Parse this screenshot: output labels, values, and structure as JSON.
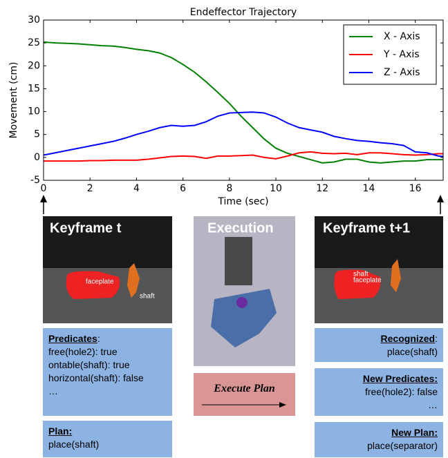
{
  "chart_data": {
    "type": "line",
    "title": "Endeffector Trajectory",
    "x_label": "Time (sec)",
    "y_label": "Movement (cm)",
    "x": [
      0,
      0.5,
      1,
      1.5,
      2,
      2.5,
      3,
      3.5,
      4,
      4.5,
      5,
      5.5,
      6,
      6.5,
      7,
      7.5,
      8,
      8.5,
      9,
      9.5,
      10,
      10.5,
      11,
      11.5,
      12,
      12.5,
      13,
      13.5,
      14,
      14.5,
      15,
      15.5,
      16,
      16.5,
      17,
      17.2
    ],
    "series": [
      {
        "name": "X - Axis",
        "color": "#008000",
        "values": [
          25.2,
          25.0,
          24.9,
          24.8,
          24.6,
          24.4,
          24.3,
          24.0,
          23.6,
          23.3,
          22.8,
          21.8,
          20.3,
          18.6,
          16.5,
          14.2,
          11.8,
          9.0,
          6.5,
          4.0,
          2.0,
          0.9,
          0.2,
          -0.5,
          -1.2,
          -1.0,
          -0.4,
          -0.4,
          -1.0,
          -1.2,
          -1.0,
          -0.8,
          -0.8,
          -0.5,
          -0.5,
          -0.5
        ]
      },
      {
        "name": "Y - Axis",
        "color": "#ff0000",
        "values": [
          -0.8,
          -0.8,
          -0.8,
          -0.8,
          -0.7,
          -0.7,
          -0.6,
          -0.6,
          -0.6,
          -0.4,
          -0.1,
          0.2,
          0.3,
          0.2,
          -0.2,
          0.3,
          0.3,
          0.4,
          0.5,
          0.0,
          -0.3,
          0.3,
          1.0,
          1.2,
          0.9,
          0.8,
          0.9,
          0.6,
          1.0,
          1.0,
          0.8,
          0.6,
          0.5,
          0.6,
          0.8,
          0.8
        ]
      },
      {
        "name": "Z - Axis",
        "color": "#0000ff",
        "values": [
          0.5,
          1.0,
          1.5,
          2.0,
          2.5,
          3.0,
          3.5,
          4.2,
          5.0,
          5.7,
          6.5,
          7.0,
          6.8,
          7.0,
          7.8,
          9.0,
          9.7,
          9.8,
          9.9,
          9.7,
          8.8,
          7.5,
          6.5,
          6.0,
          5.5,
          4.6,
          4.1,
          3.7,
          3.5,
          3.2,
          3.0,
          2.6,
          1.2,
          1.0,
          0.3,
          0.2
        ]
      }
    ],
    "xlim": [
      0,
      17.2
    ],
    "xticks": [
      0,
      2,
      4,
      6,
      8,
      10,
      12,
      14,
      16
    ],
    "ylim": [
      -5,
      30
    ],
    "yticks": [
      -5,
      0,
      5,
      10,
      15,
      20,
      25,
      30
    ],
    "legend": "upper right"
  },
  "panels": {
    "keyframe_t": {
      "title": "Keyframe t",
      "labels": [
        "faceplate",
        "shaft"
      ]
    },
    "execution": {
      "title": "Execution"
    },
    "keyframe_t1": {
      "title": "Keyframe t+1",
      "labels": [
        "shaft",
        "faceplate"
      ]
    },
    "predicates": {
      "heading": "Predicates",
      "colon": ":",
      "lines": [
        "free(hole2): true",
        "ontable(shaft): true",
        "horizontal(shaft): false",
        "…"
      ]
    },
    "plan": {
      "heading": "Plan:",
      "lines": [
        "place(shaft)"
      ]
    },
    "execute": {
      "label": "Execute Plan"
    },
    "recognized": {
      "heading": "Recognized",
      "colon": ":",
      "lines": [
        "place(shaft)"
      ]
    },
    "new_predicates": {
      "heading": "New Predicates:",
      "lines": [
        "free(hole2): false",
        "…"
      ]
    },
    "new_plan": {
      "heading": "New Plan:",
      "lines": [
        "place(separator)"
      ]
    }
  }
}
